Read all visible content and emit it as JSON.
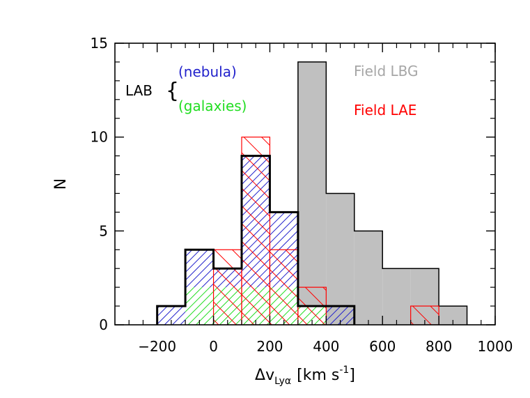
{
  "chart_data": {
    "type": "histogram",
    "xlabel_main": "Δv",
    "xlabel_sub": "Lyα",
    "xlabel_units": "[km s",
    "xlabel_exp": "-1",
    "xlabel_close": "]",
    "ylabel": "N",
    "xlim": [
      -350,
      1000
    ],
    "ylim": [
      0,
      15
    ],
    "x_ticks": [
      -200,
      0,
      200,
      400,
      600,
      800,
      1000
    ],
    "x_tick_labels": [
      "-200",
      "0",
      "200",
      "400",
      "600",
      "800",
      "1000"
    ],
    "y_ticks": [
      0,
      5,
      10,
      15
    ],
    "y_tick_labels": [
      "0",
      "5",
      "10",
      "15"
    ],
    "bin_width": 100,
    "series": [
      {
        "name": "Field LBG",
        "color": "#c0c0c0",
        "bins": [
          {
            "x0": 300,
            "value": 14
          },
          {
            "x0": 400,
            "value": 7
          },
          {
            "x0": 500,
            "value": 5
          },
          {
            "x0": 600,
            "value": 3
          },
          {
            "x0": 700,
            "value": 3
          },
          {
            "x0": 800,
            "value": 1
          }
        ]
      },
      {
        "name": "Field LAE",
        "color": "#ff0000",
        "bins": [
          {
            "x0": 0,
            "value": 4
          },
          {
            "x0": 100,
            "value": 10
          },
          {
            "x0": 200,
            "value": 4
          },
          {
            "x0": 300,
            "value": 2
          },
          {
            "x0": 700,
            "value": 1
          }
        ]
      },
      {
        "name": "LAB (nebula)",
        "color": "#2222cc",
        "bins": [
          {
            "x0": -200,
            "value": 1
          },
          {
            "x0": -100,
            "value": 4
          },
          {
            "x0": 0,
            "value": 3
          },
          {
            "x0": 100,
            "value": 9
          },
          {
            "x0": 200,
            "value": 6
          },
          {
            "x0": 300,
            "value": 1
          },
          {
            "x0": 400,
            "value": 1
          }
        ]
      },
      {
        "name": "LAB (galaxies)",
        "color": "#22dd22",
        "bins": [
          {
            "x0": -100,
            "value": 2
          },
          {
            "x0": 0,
            "value": 2
          },
          {
            "x0": 100,
            "value": 2
          },
          {
            "x0": 200,
            "value": 2
          },
          {
            "x0": 300,
            "value": 1
          }
        ]
      }
    ],
    "legend": {
      "lab_label": "LAB",
      "brace": "{",
      "nebula": "(nebula)",
      "galaxies": "(galaxies)",
      "field_lbg": "Field LBG",
      "field_lae": "Field LAE"
    }
  }
}
